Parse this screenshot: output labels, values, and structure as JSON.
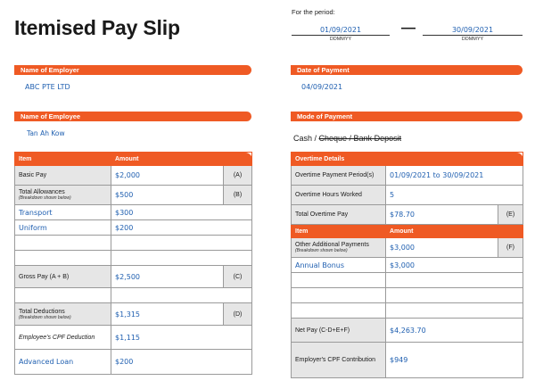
{
  "title": "Itemised Pay Slip",
  "period": {
    "label": "For the period:",
    "from": "01/09/2021",
    "dash": "—",
    "to": "30/09/2021",
    "format": "DDMMYY"
  },
  "employer": {
    "label": "Name of Employer",
    "value": "ABC PTE LTD"
  },
  "payment_date": {
    "label": "Date of Payment",
    "value": "04/09/2021"
  },
  "employee": {
    "label": "Name of Employee",
    "value": "Tan Ah Kow"
  },
  "payment_mode": {
    "label": "Mode of Payment",
    "cash": "Cash",
    "sep": " / ",
    "struck": "Cheque / Bank Deposit"
  },
  "left_table": {
    "headers": [
      "Item",
      "Amount"
    ],
    "rows": [
      {
        "item": "Basic Pay",
        "amount": "$2,000",
        "code": "(A)"
      },
      {
        "item": "Total Allowances",
        "sub": "(Breakdown shown below)",
        "amount": "$500",
        "code": "(B)"
      },
      {
        "item": "Transport",
        "amount": "$300"
      },
      {
        "item": "Uniform",
        "amount": "$200"
      },
      {
        "item": "",
        "amount": ""
      },
      {
        "item": "",
        "amount": ""
      },
      {
        "item": "Gross Pay (A + B)",
        "amount": "$2,500",
        "code": "(C)"
      },
      {
        "item": "",
        "amount": ""
      },
      {
        "item": "Total Deductions",
        "sub": "(Breakdown shown below)",
        "amount": "$1,315",
        "code": "(D)"
      },
      {
        "item": "Employee's CPF Deduction",
        "amount": "$1,115"
      },
      {
        "item": "Advanced Loan",
        "amount": "$200"
      }
    ]
  },
  "right_table": {
    "ot_header": "Overtime Details",
    "ot_rows": [
      {
        "item": "Overtime Payment Period(s)",
        "value": "01/09/2021 to 30/09/2021"
      },
      {
        "item": "Overtime Hours Worked",
        "value": "5"
      },
      {
        "item": "Total Overtime Pay",
        "value": "$78.70",
        "code": "(E)"
      }
    ],
    "headers": [
      "Item",
      "Amount"
    ],
    "rows": [
      {
        "item": "Other Additional Payments",
        "sub": "(Breakdown shown below)",
        "amount": "$3,000",
        "code": "(F)"
      },
      {
        "item": "Annual Bonus",
        "amount": "$3,000"
      },
      {
        "item": "",
        "amount": ""
      },
      {
        "item": "",
        "amount": ""
      },
      {
        "item": "",
        "amount": ""
      },
      {
        "item": "Net Pay (C-D+E+F)",
        "amount": "$4,263.70"
      },
      {
        "item": "Employer's CPF Contribution",
        "amount": "$949"
      }
    ]
  },
  "colors": {
    "accent": "#ef5a24",
    "handwriting": "#1f5fb0",
    "shaded": "#e6e6e6"
  }
}
